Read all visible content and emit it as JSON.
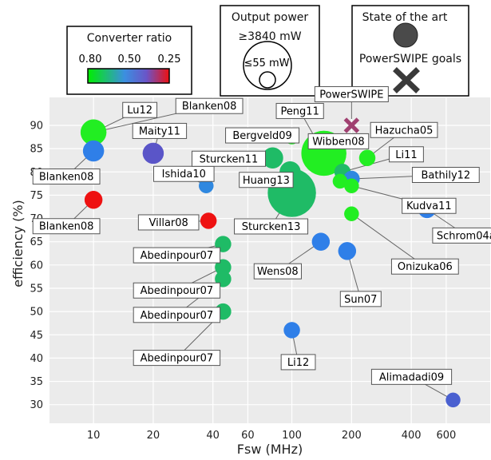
{
  "chart_data": {
    "type": "scatter",
    "xlabel": "Fsw (MHz)",
    "ylabel": "efficiency (%)",
    "xscale": "log",
    "xlim": [
      6,
      1000
    ],
    "ylim": [
      26,
      96
    ],
    "xticks": [
      10,
      20,
      40,
      60,
      100,
      200,
      400,
      600
    ],
    "yticks": [
      30,
      35,
      40,
      45,
      50,
      55,
      60,
      65,
      70,
      75,
      80,
      85,
      90
    ],
    "grid": true,
    "legend": {
      "converter_ratio": {
        "title": "Converter ratio",
        "ticks": [
          "0.80",
          "0.50",
          "0.25"
        ],
        "colors": [
          "#00ee00",
          "#3b8fe0",
          "#6a55c8",
          "#ee1010"
        ]
      },
      "output_power": {
        "title": "Output power",
        "max_label": "≥3840 mW",
        "min_label": "≤55 mW"
      },
      "markers": {
        "state_label": "State of the art",
        "goal_label": "PowerSWIPE goals"
      }
    },
    "points": [
      {
        "label": "Lu12",
        "x": 10,
        "y": 88.5,
        "color": "#22ee22",
        "r": 16
      },
      {
        "label": "Blanken08",
        "x": 10,
        "y": 88.5,
        "color": "#22ee22",
        "r": 9
      },
      {
        "label": "Blanken08",
        "x": 10,
        "y": 84.5,
        "color": "#2f7fe8",
        "r": 13
      },
      {
        "label": "Blanken08",
        "x": 10,
        "y": 74,
        "color": "#ee1111",
        "r": 11
      },
      {
        "label": "Maity11",
        "x": 20,
        "y": 84,
        "color": "#5a55c8",
        "r": 13
      },
      {
        "label": "Ishida10",
        "x": 37,
        "y": 77,
        "color": "#2f88e0",
        "r": 9
      },
      {
        "label": "Villar08",
        "x": 38,
        "y": 69.5,
        "color": "#ee1111",
        "r": 10
      },
      {
        "label": "Abedinpour07",
        "x": 45,
        "y": 64.5,
        "color": "#1fbb66",
        "r": 10
      },
      {
        "label": "Abedinpour07",
        "x": 45,
        "y": 59.5,
        "color": "#1fbb66",
        "r": 10
      },
      {
        "label": "Abedinpour07",
        "x": 45,
        "y": 57,
        "color": "#1fbb66",
        "r": 10
      },
      {
        "label": "Abedinpour07",
        "x": 45,
        "y": 50,
        "color": "#1fbb66",
        "r": 10
      },
      {
        "label": "Bergveld09",
        "x": 100,
        "y": 87.5,
        "color": "#22ee22",
        "r": 9
      },
      {
        "label": "Sturcken11",
        "x": 80,
        "y": 83,
        "color": "#1fbb66",
        "r": 13
      },
      {
        "label": "Huang13",
        "x": 98,
        "y": 80,
        "color": "#1fbb66",
        "r": 13
      },
      {
        "label": "Sturcken13",
        "x": 100,
        "y": 75.5,
        "color": "#1fbb66",
        "r": 30
      },
      {
        "label": "Peng11",
        "x": 145,
        "y": 84,
        "color": "#22ee22",
        "r": 28
      },
      {
        "label": "Hazucha05",
        "x": 240,
        "y": 83,
        "color": "#22ee22",
        "r": 10
      },
      {
        "label": "Li11",
        "x": 180,
        "y": 80,
        "color": "#1fbb66",
        "r": 10
      },
      {
        "label": "Bathily12",
        "x": 200,
        "y": 78.5,
        "color": "#2f88e0",
        "r": 10
      },
      {
        "label": "Kudva11",
        "x": 200,
        "y": 77,
        "color": "#22ee22",
        "r": 9
      },
      {
        "label": "Wibben08",
        "x": 175,
        "y": 78,
        "color": "#22ee22",
        "r": 9
      },
      {
        "label": "Onizuka06",
        "x": 200,
        "y": 71,
        "color": "#22ee22",
        "r": 9
      },
      {
        "label": "Schrom04a",
        "x": 480,
        "y": 72,
        "color": "#2f7fe8",
        "r": 11
      },
      {
        "label": "Wens08",
        "x": 140,
        "y": 65,
        "color": "#2f7fe8",
        "r": 11
      },
      {
        "label": "Sun07",
        "x": 190,
        "y": 63,
        "color": "#2f7fe8",
        "r": 11
      },
      {
        "label": "Li12",
        "x": 100,
        "y": 46,
        "color": "#2f7fe8",
        "r": 10
      },
      {
        "label": "Alimadadi09",
        "x": 650,
        "y": 31,
        "color": "#4a60d0",
        "r": 9
      }
    ],
    "goal": {
      "label": "PowerSWIPE",
      "x": 200,
      "y": 90,
      "color": "#a04070"
    }
  }
}
